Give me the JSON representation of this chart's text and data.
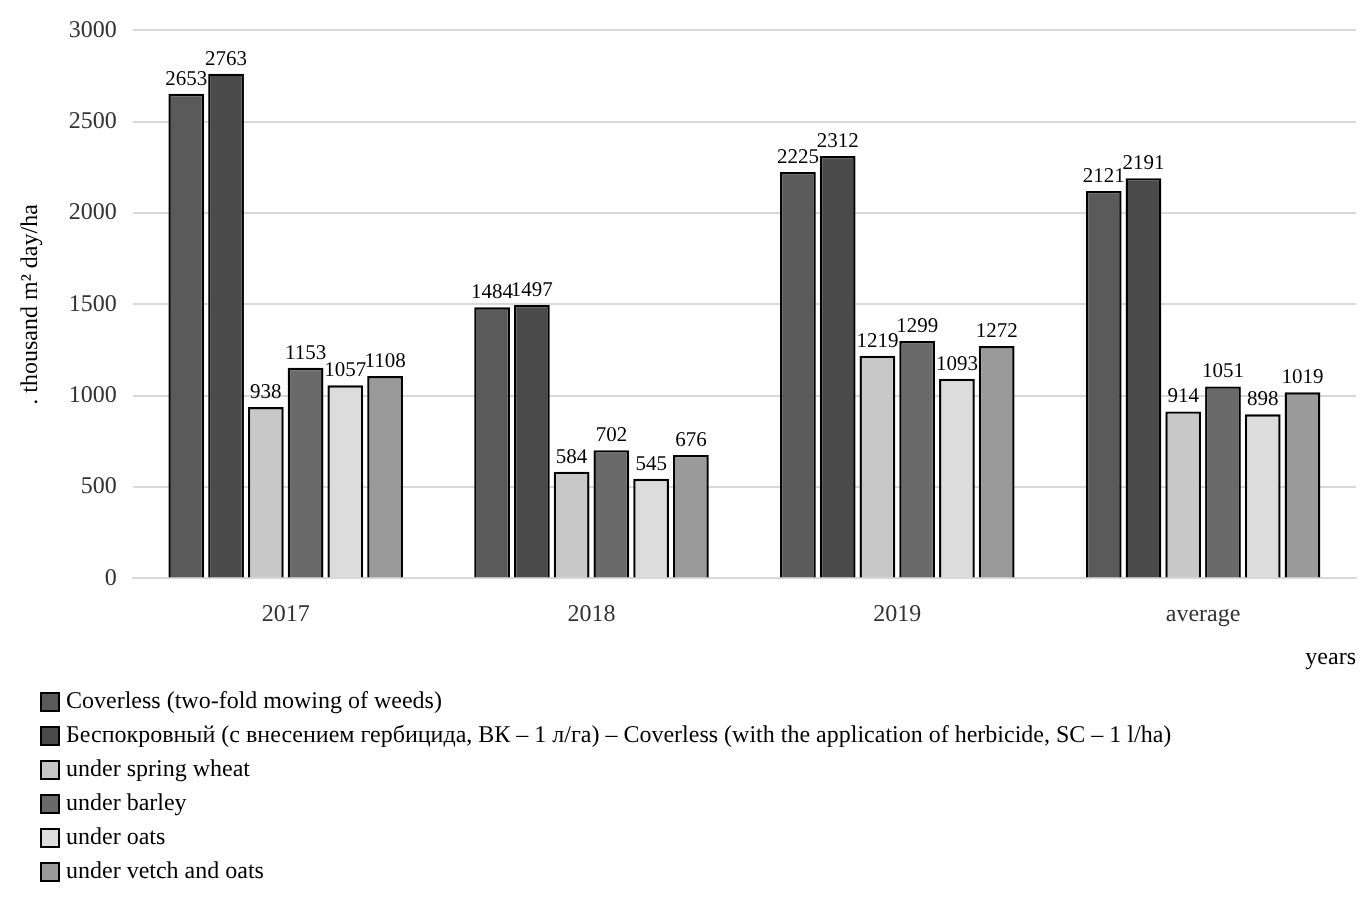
{
  "chart_data": {
    "type": "bar",
    "ylabel": ". thousand m² day/ha",
    "xlabel": "years",
    "categories": [
      "2017",
      "2018",
      "2019",
      "average"
    ],
    "series": [
      {
        "name": "Coverless (two-fold mowing of weeds)",
        "color": "#5a5a5a",
        "values": [
          2653,
          1484,
          2225,
          2121
        ]
      },
      {
        "name": "Беспокровный (с внесением гербицида, ВК – 1 л/га) – Coverless (with the application of herbicide, SC – 1 l/ha)",
        "color": "#4a4a4a",
        "values": [
          2763,
          1497,
          2312,
          2191
        ]
      },
      {
        "name": "under spring wheat",
        "color": "#c8c8c8",
        "values": [
          938,
          584,
          1219,
          914
        ]
      },
      {
        "name": "under barley",
        "color": "#6a6a6a",
        "values": [
          1153,
          702,
          1299,
          1051
        ]
      },
      {
        "name": "under oats",
        "color": "#dcdcdc",
        "values": [
          1057,
          545,
          1093,
          898
        ]
      },
      {
        "name": "under vetch and oats",
        "color": "#9a9a9a",
        "values": [
          1108,
          676,
          1272,
          1019
        ]
      }
    ],
    "ylim": [
      0,
      3000
    ],
    "yticks": [
      0,
      500,
      1000,
      1500,
      2000,
      2500,
      3000
    ],
    "grid": "y",
    "legend": "bottom",
    "data_labels": true
  }
}
